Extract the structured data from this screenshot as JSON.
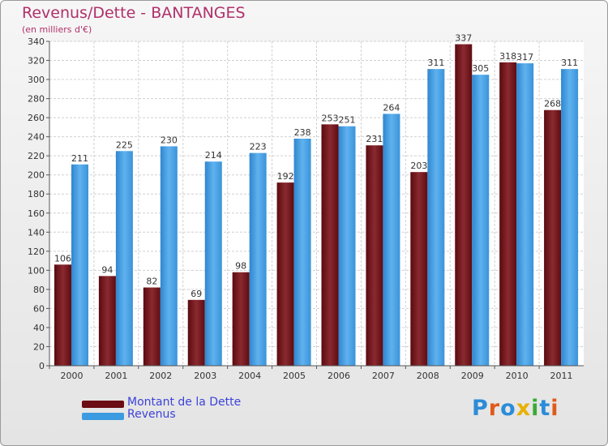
{
  "title": "Revenus/Dette - BANTANGES",
  "subtitle": "(en milliers d'€)",
  "legend": [
    {
      "label": "Montant de la Dette",
      "color": "#6b0d12"
    },
    {
      "label": "Revenus",
      "color": "#3b9be0"
    }
  ],
  "brand": {
    "text": "Proxiti",
    "colors": [
      "#2b8cd8",
      "#e05a1a",
      "#2b8cd8",
      "#e8b000",
      "#3aaa35",
      "#2b8cd8",
      "#e05a1a"
    ]
  },
  "chart_data": {
    "type": "bar",
    "title": "Revenus/Dette - BANTANGES",
    "subtitle": "(en milliers d'€)",
    "categories": [
      "2000",
      "2001",
      "2002",
      "2003",
      "2004",
      "2005",
      "2006",
      "2007",
      "2008",
      "2009",
      "2010",
      "2011"
    ],
    "series": [
      {
        "name": "Montant de la Dette",
        "color": "#7a1f24",
        "values": [
          106,
          94,
          82,
          69,
          98,
          192,
          253,
          231,
          203,
          337,
          318,
          268
        ]
      },
      {
        "name": "Revenus",
        "color": "#4ea6e6",
        "values": [
          211,
          225,
          230,
          214,
          223,
          238,
          251,
          264,
          311,
          305,
          317,
          311
        ]
      }
    ],
    "ylim": [
      0,
      340
    ],
    "yticks": [
      0,
      20,
      40,
      60,
      80,
      100,
      120,
      140,
      160,
      180,
      200,
      220,
      240,
      260,
      280,
      300,
      320,
      340
    ],
    "grid": true,
    "legend_position": "bottom-left"
  }
}
